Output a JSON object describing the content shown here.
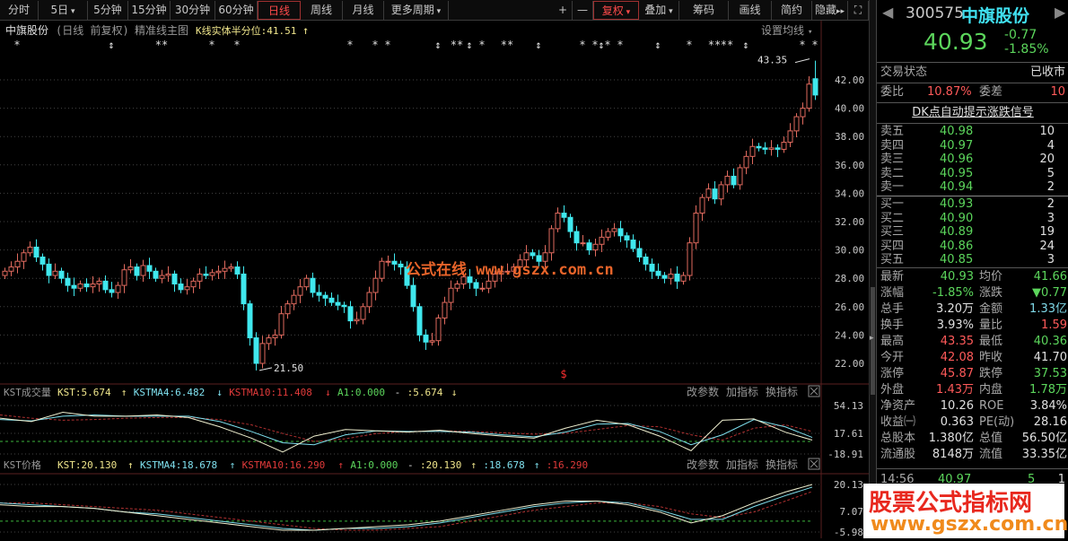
{
  "toolbar": {
    "periods": [
      "分时",
      "5日",
      "5分钟",
      "15分钟",
      "30分钟",
      "60分钟",
      "日线",
      "周线",
      "月线",
      "更多周期"
    ],
    "active_period": "日线",
    "right_buttons": [
      "+",
      "—",
      "复权",
      "叠加",
      "筹码",
      "画线",
      "简约",
      "隐藏"
    ]
  },
  "chart": {
    "title": "中旗股份",
    "subtitle": "(日线 前复权)",
    "main_indicator": "精准线主图",
    "half_label": "K线实体半分位:41.51",
    "half_arrow": "↑",
    "ma_setting": "设置均线",
    "price_ticks": [
      "42.00",
      "40.00",
      "38.00",
      "36.00",
      "34.00",
      "32.00",
      "30.00",
      "28.00",
      "26.00",
      "24.00",
      "22.00"
    ],
    "high_label": "43.35",
    "low_label": "21.50",
    "signal_mark": "$",
    "watermark": "公式在线 www.gszx.com.cn",
    "colors": {
      "up": "#e06a5e",
      "down": "#40e8ee",
      "grid": "#5a3030",
      "signal": "#ff3030"
    },
    "closes": [
      28.5,
      28.8,
      29.2,
      29.8,
      30.2,
      29.5,
      29,
      28.2,
      28.5,
      28,
      27.5,
      27.3,
      27.6,
      27.4,
      27.6,
      27.8,
      27.2,
      27,
      27.5,
      28.6,
      28.8,
      28.2,
      28.9,
      28.5,
      28,
      28.2,
      28.3,
      27.6,
      27.2,
      27.4,
      27.8,
      28.3,
      28.2,
      28.4,
      28.5,
      28.7,
      28.8,
      28.3,
      26.2,
      23.8,
      22.0,
      23.4,
      23.8,
      24,
      25.5,
      26.2,
      26.8,
      27.4,
      28,
      27,
      26.8,
      26.6,
      26.3,
      26.1,
      26,
      25,
      25.1,
      26,
      27,
      28,
      29.2,
      29.2,
      29,
      28.8,
      27.5,
      26,
      24,
      23.5,
      23.6,
      25.2,
      26.3,
      27.3,
      27.6,
      28.1,
      27.7,
      27.3,
      27.3,
      27.8,
      28.3,
      28.5,
      28.5,
      28.8,
      29.3,
      29.8,
      29.6,
      29.2,
      29.8,
      31.5,
      32.6,
      32.3,
      31.3,
      30.5,
      30.5,
      30,
      30.4,
      30.9,
      31.3,
      31.5,
      31,
      30.7,
      30.1,
      29.5,
      29,
      28.5,
      28.2,
      28,
      28.3,
      27.8,
      28.2,
      30.5,
      32.6,
      33.7,
      34.3,
      33.6,
      34.6,
      35.2,
      34.6,
      35.8,
      36.6,
      37.3,
      37.2,
      37.1,
      37.2,
      37.1,
      37.6,
      38.4,
      39.4,
      40,
      41.7,
      40.93
    ],
    "last_open": 42.08,
    "last_high": 43.35,
    "signals": [
      {
        "i": 2,
        "g": "*"
      },
      {
        "i": 17,
        "g": "↕"
      },
      {
        "i": 25,
        "g": "**"
      },
      {
        "i": 33,
        "g": "*"
      },
      {
        "i": 37,
        "g": "*"
      },
      {
        "i": 55,
        "g": "*"
      },
      {
        "i": 59,
        "g": "*"
      },
      {
        "i": 61,
        "g": "*"
      },
      {
        "i": 69,
        "g": "↕"
      },
      {
        "i": 72,
        "g": "**"
      },
      {
        "i": 74,
        "g": "↕"
      },
      {
        "i": 76,
        "g": "*"
      },
      {
        "i": 80,
        "g": "**"
      },
      {
        "i": 85,
        "g": "↕"
      },
      {
        "i": 92,
        "g": "*"
      },
      {
        "i": 94,
        "g": "*"
      },
      {
        "i": 95,
        "g": "↕"
      },
      {
        "i": 96,
        "g": "*"
      },
      {
        "i": 98,
        "g": "*"
      },
      {
        "i": 104,
        "g": "↕"
      },
      {
        "i": 109,
        "g": "*"
      },
      {
        "i": 113,
        "g": "**"
      },
      {
        "i": 115,
        "g": "**"
      },
      {
        "i": 118,
        "g": "↕"
      },
      {
        "i": 127,
        "g": "*"
      },
      {
        "i": 129,
        "g": "*"
      }
    ]
  },
  "kst_volume": {
    "name": "KST成交量",
    "kst": "KST:5.674",
    "kst_arrow": "↑",
    "ma4": "KSTMA4:6.482",
    "ma4_arrow": "↓",
    "ma10": "KSTMA10:11.408",
    "ma10_arrow": "↓",
    "a1": "A1:0.000",
    "dash": "-",
    "extra": ":5.674",
    "extra_arrow": "↓",
    "buttons": [
      "改参数",
      "加指标",
      "换指标"
    ],
    "ticks": [
      "54.13",
      "17.61",
      "-18.91"
    ],
    "range": [
      -18.91,
      54.13
    ],
    "kst_values": [
      35,
      30,
      44,
      38,
      38,
      40,
      36,
      22,
      5,
      -16,
      8,
      18,
      16,
      14,
      17,
      12,
      8,
      5,
      20,
      32,
      25,
      8,
      -14,
      32,
      34,
      14,
      2
    ],
    "ma4_values": [
      33,
      31,
      38,
      40,
      38,
      38,
      38,
      30,
      15,
      -2,
      -5,
      10,
      16,
      15,
      15,
      14,
      10,
      7,
      14,
      26,
      27,
      15,
      -5,
      10,
      33,
      22,
      6
    ],
    "ma10_values": [
      40,
      35,
      32,
      33,
      35,
      36,
      36,
      33,
      25,
      12,
      0,
      4,
      12,
      15,
      16,
      15,
      13,
      11,
      12,
      18,
      24,
      22,
      10,
      2,
      20,
      25,
      15
    ]
  },
  "kst_price": {
    "name": "KST价格",
    "kst": "KST:20.130",
    "kst_arrow": "↑",
    "ma4": "KSTMA4:18.678",
    "ma4_arrow": "↑",
    "ma10": "KSTMA10:16.290",
    "ma10_arrow": "↑",
    "a1": "A1:0.000",
    "dash": "-",
    "extra": ":20.130",
    "extra_arrow": "↑",
    "extra2": ":18.678",
    "extra2_arrow": "↑",
    "extra3": ":16.290",
    "buttons": [
      "改参数",
      "加指标",
      "换指标"
    ],
    "ticks": [
      "20.13",
      "7.07",
      "-5.98"
    ],
    "range": [
      -5.98,
      20.13
    ],
    "kst_values": [
      9,
      8,
      8,
      7,
      5,
      3,
      1,
      -1,
      -3,
      -5,
      -5,
      -4,
      -3,
      -2,
      0,
      3,
      6,
      9,
      11,
      11,
      9,
      5,
      -1,
      3,
      10,
      16,
      20.13
    ],
    "ma4_values": [
      10,
      9,
      8,
      7,
      5,
      4,
      2,
      0,
      -2,
      -4,
      -5,
      -4,
      -4,
      -3,
      -1,
      2,
      5,
      8,
      10,
      11,
      10,
      6,
      1,
      1,
      8,
      14,
      18.68
    ],
    "ma10_values": [
      10,
      10,
      9,
      8,
      7,
      6,
      4,
      2,
      0,
      -2,
      -4,
      -5,
      -5,
      -4,
      -3,
      0,
      3,
      6,
      8,
      10,
      10,
      8,
      4,
      2,
      5,
      11,
      16.29
    ]
  },
  "quote": {
    "code": "300575",
    "name": "中旗股份",
    "price": "40.93",
    "change": "-0.77",
    "change_pct": "-1.85%",
    "status_label": "交易状态",
    "status": "已收市",
    "wb_label": "委比",
    "wb": "10.87%",
    "wc_label": "委差",
    "wc": "10",
    "link": "DK点自动提示涨跌信号",
    "asks": [
      {
        "label": "卖五",
        "price": "40.98",
        "vol": "10"
      },
      {
        "label": "卖四",
        "price": "40.97",
        "vol": "4"
      },
      {
        "label": "卖三",
        "price": "40.96",
        "vol": "20"
      },
      {
        "label": "卖二",
        "price": "40.95",
        "vol": "5"
      },
      {
        "label": "卖一",
        "price": "40.94",
        "vol": "2"
      }
    ],
    "bids": [
      {
        "label": "买一",
        "price": "40.93",
        "vol": "2"
      },
      {
        "label": "买二",
        "price": "40.90",
        "vol": "3"
      },
      {
        "label": "买三",
        "price": "40.89",
        "vol": "19"
      },
      {
        "label": "买四",
        "price": "40.86",
        "vol": "24"
      },
      {
        "label": "买五",
        "price": "40.85",
        "vol": "3"
      }
    ],
    "stats": [
      {
        "l1": "最新",
        "v1": "40.93",
        "c1": "g",
        "l2": "均价",
        "v2": "41.66",
        "c2": "g"
      },
      {
        "l1": "涨幅",
        "v1": "-1.85%",
        "c1": "g",
        "l2": "涨跌",
        "v2": "▼0.77",
        "c2": "g"
      },
      {
        "l1": "总手",
        "v1": "3.20万",
        "c1": "w",
        "l2": "金额",
        "v2": "1.33亿",
        "c2": "c"
      },
      {
        "l1": "换手",
        "v1": "3.93%",
        "c1": "w",
        "l2": "量比",
        "v2": "1.59",
        "c2": "r"
      },
      {
        "l1": "最高",
        "v1": "43.35",
        "c1": "r",
        "l2": "最低",
        "v2": "40.36",
        "c2": "g"
      },
      {
        "l1": "今开",
        "v1": "42.08",
        "c1": "r",
        "l2": "昨收",
        "v2": "41.70",
        "c2": "w"
      },
      {
        "l1": "涨停",
        "v1": "45.87",
        "c1": "r",
        "l2": "跌停",
        "v2": "37.53",
        "c2": "g"
      },
      {
        "l1": "外盘",
        "v1": "1.43万",
        "c1": "r",
        "l2": "内盘",
        "v2": "1.78万",
        "c2": "g"
      },
      {
        "l1": "净资产",
        "v1": "10.26",
        "c1": "w",
        "l2": "ROE",
        "v2": "3.84%",
        "c2": "w"
      },
      {
        "l1": "收益㈠",
        "v1": "0.363",
        "c1": "w",
        "l2": "PE(动)",
        "v2": "28.16",
        "c2": "w"
      },
      {
        "l1": "总股本",
        "v1": "1.380亿",
        "c1": "w",
        "l2": "总值",
        "v2": "56.50亿",
        "c2": "w"
      },
      {
        "l1": "流通股",
        "v1": "8148万",
        "c1": "w",
        "l2": "流值",
        "v2": "33.35亿",
        "c2": "w"
      }
    ],
    "tick": {
      "time": "14:56",
      "price": "40.97",
      "vol": "5",
      "n": "1"
    }
  },
  "watermark": {
    "title": "股票公式指标网",
    "url": "www.gszx.com.cn"
  }
}
